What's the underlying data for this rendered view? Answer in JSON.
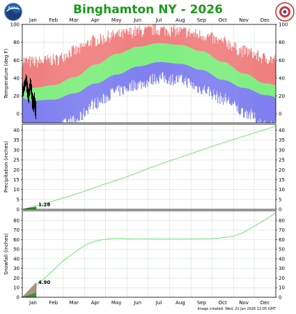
{
  "header": {
    "title": "Binghamton NY - 2026",
    "logo_left": "NOAA",
    "logo_right": "NATIONAL WEATHER SERVICE"
  },
  "footer": {
    "text": "Image created: Wed, 21 Jan 2026 12:05 GMT"
  },
  "colors": {
    "record_high": "#f08080",
    "normal": "#80ee80",
    "record_low": "#8080f0",
    "observed": "#000000",
    "grid": "#c8dcc8",
    "precip_line": "#55dd55",
    "precip_fill": "#3f8f3f",
    "snow_line": "#55dd55",
    "snow_fill": "#a8957d"
  },
  "chart_data": [
    {
      "type": "area",
      "name": "temperature",
      "ylabel": "Temperature (deg F)",
      "ylim": [
        -10,
        100
      ],
      "yticks": [
        0,
        20,
        40,
        60,
        80,
        100
      ],
      "months": [
        "Jan",
        "Feb",
        "Mar",
        "Apr",
        "May",
        "Jun",
        "Jul",
        "Aug",
        "Sep",
        "Oct",
        "Nov",
        "Dec"
      ],
      "grid": true,
      "bands": {
        "record_high": [
          58,
          60,
          70,
          82,
          88,
          92,
          94,
          92,
          88,
          80,
          70,
          62
        ],
        "normal_high": [
          29,
          32,
          41,
          55,
          67,
          75,
          79,
          77,
          70,
          58,
          45,
          34
        ],
        "normal_low": [
          15,
          16,
          23,
          34,
          44,
          53,
          58,
          56,
          49,
          38,
          29,
          21
        ],
        "record_low": [
          -18,
          -16,
          -8,
          12,
          25,
          33,
          40,
          38,
          28,
          17,
          2,
          -12
        ]
      },
      "observed_days": [
        1,
        2,
        3,
        4,
        5,
        6,
        7,
        8,
        9,
        10,
        11,
        12,
        13,
        14,
        15,
        16,
        17,
        18,
        19,
        20
      ],
      "observed_high": [
        34,
        31,
        36,
        38,
        40,
        44,
        42,
        36,
        30,
        28,
        34,
        40,
        38,
        33,
        24,
        22,
        20,
        24,
        18,
        14
      ],
      "observed_low": [
        18,
        20,
        24,
        26,
        30,
        32,
        24,
        18,
        14,
        12,
        20,
        26,
        22,
        16,
        6,
        4,
        2,
        6,
        -2,
        -6
      ]
    },
    {
      "type": "line",
      "name": "precipitation",
      "ylabel": "Precipitation (inches)",
      "ylim": [
        0,
        43
      ],
      "yticks": [
        0,
        5,
        10,
        15,
        20,
        25,
        30,
        35,
        40
      ],
      "normal_cumulative": [
        0,
        2.8,
        5.7,
        9.2,
        12.9,
        16.5,
        20.6,
        24.5,
        28.1,
        31.8,
        35.3,
        38.6,
        42.0
      ],
      "observed_total": 1.28,
      "observed_label": "1.28"
    },
    {
      "type": "line",
      "name": "snowfall",
      "ylabel": "Snowfall (inches)",
      "ylim": [
        0,
        90
      ],
      "yticks": [
        0,
        10,
        20,
        30,
        40,
        50,
        60,
        70,
        80
      ],
      "normal_cumulative": [
        0,
        19,
        38,
        54,
        60.2,
        60.8,
        60.8,
        60.8,
        60.8,
        61.0,
        63.5,
        74,
        88
      ],
      "observed_total": 4.9,
      "observed_label": "4.90"
    }
  ]
}
